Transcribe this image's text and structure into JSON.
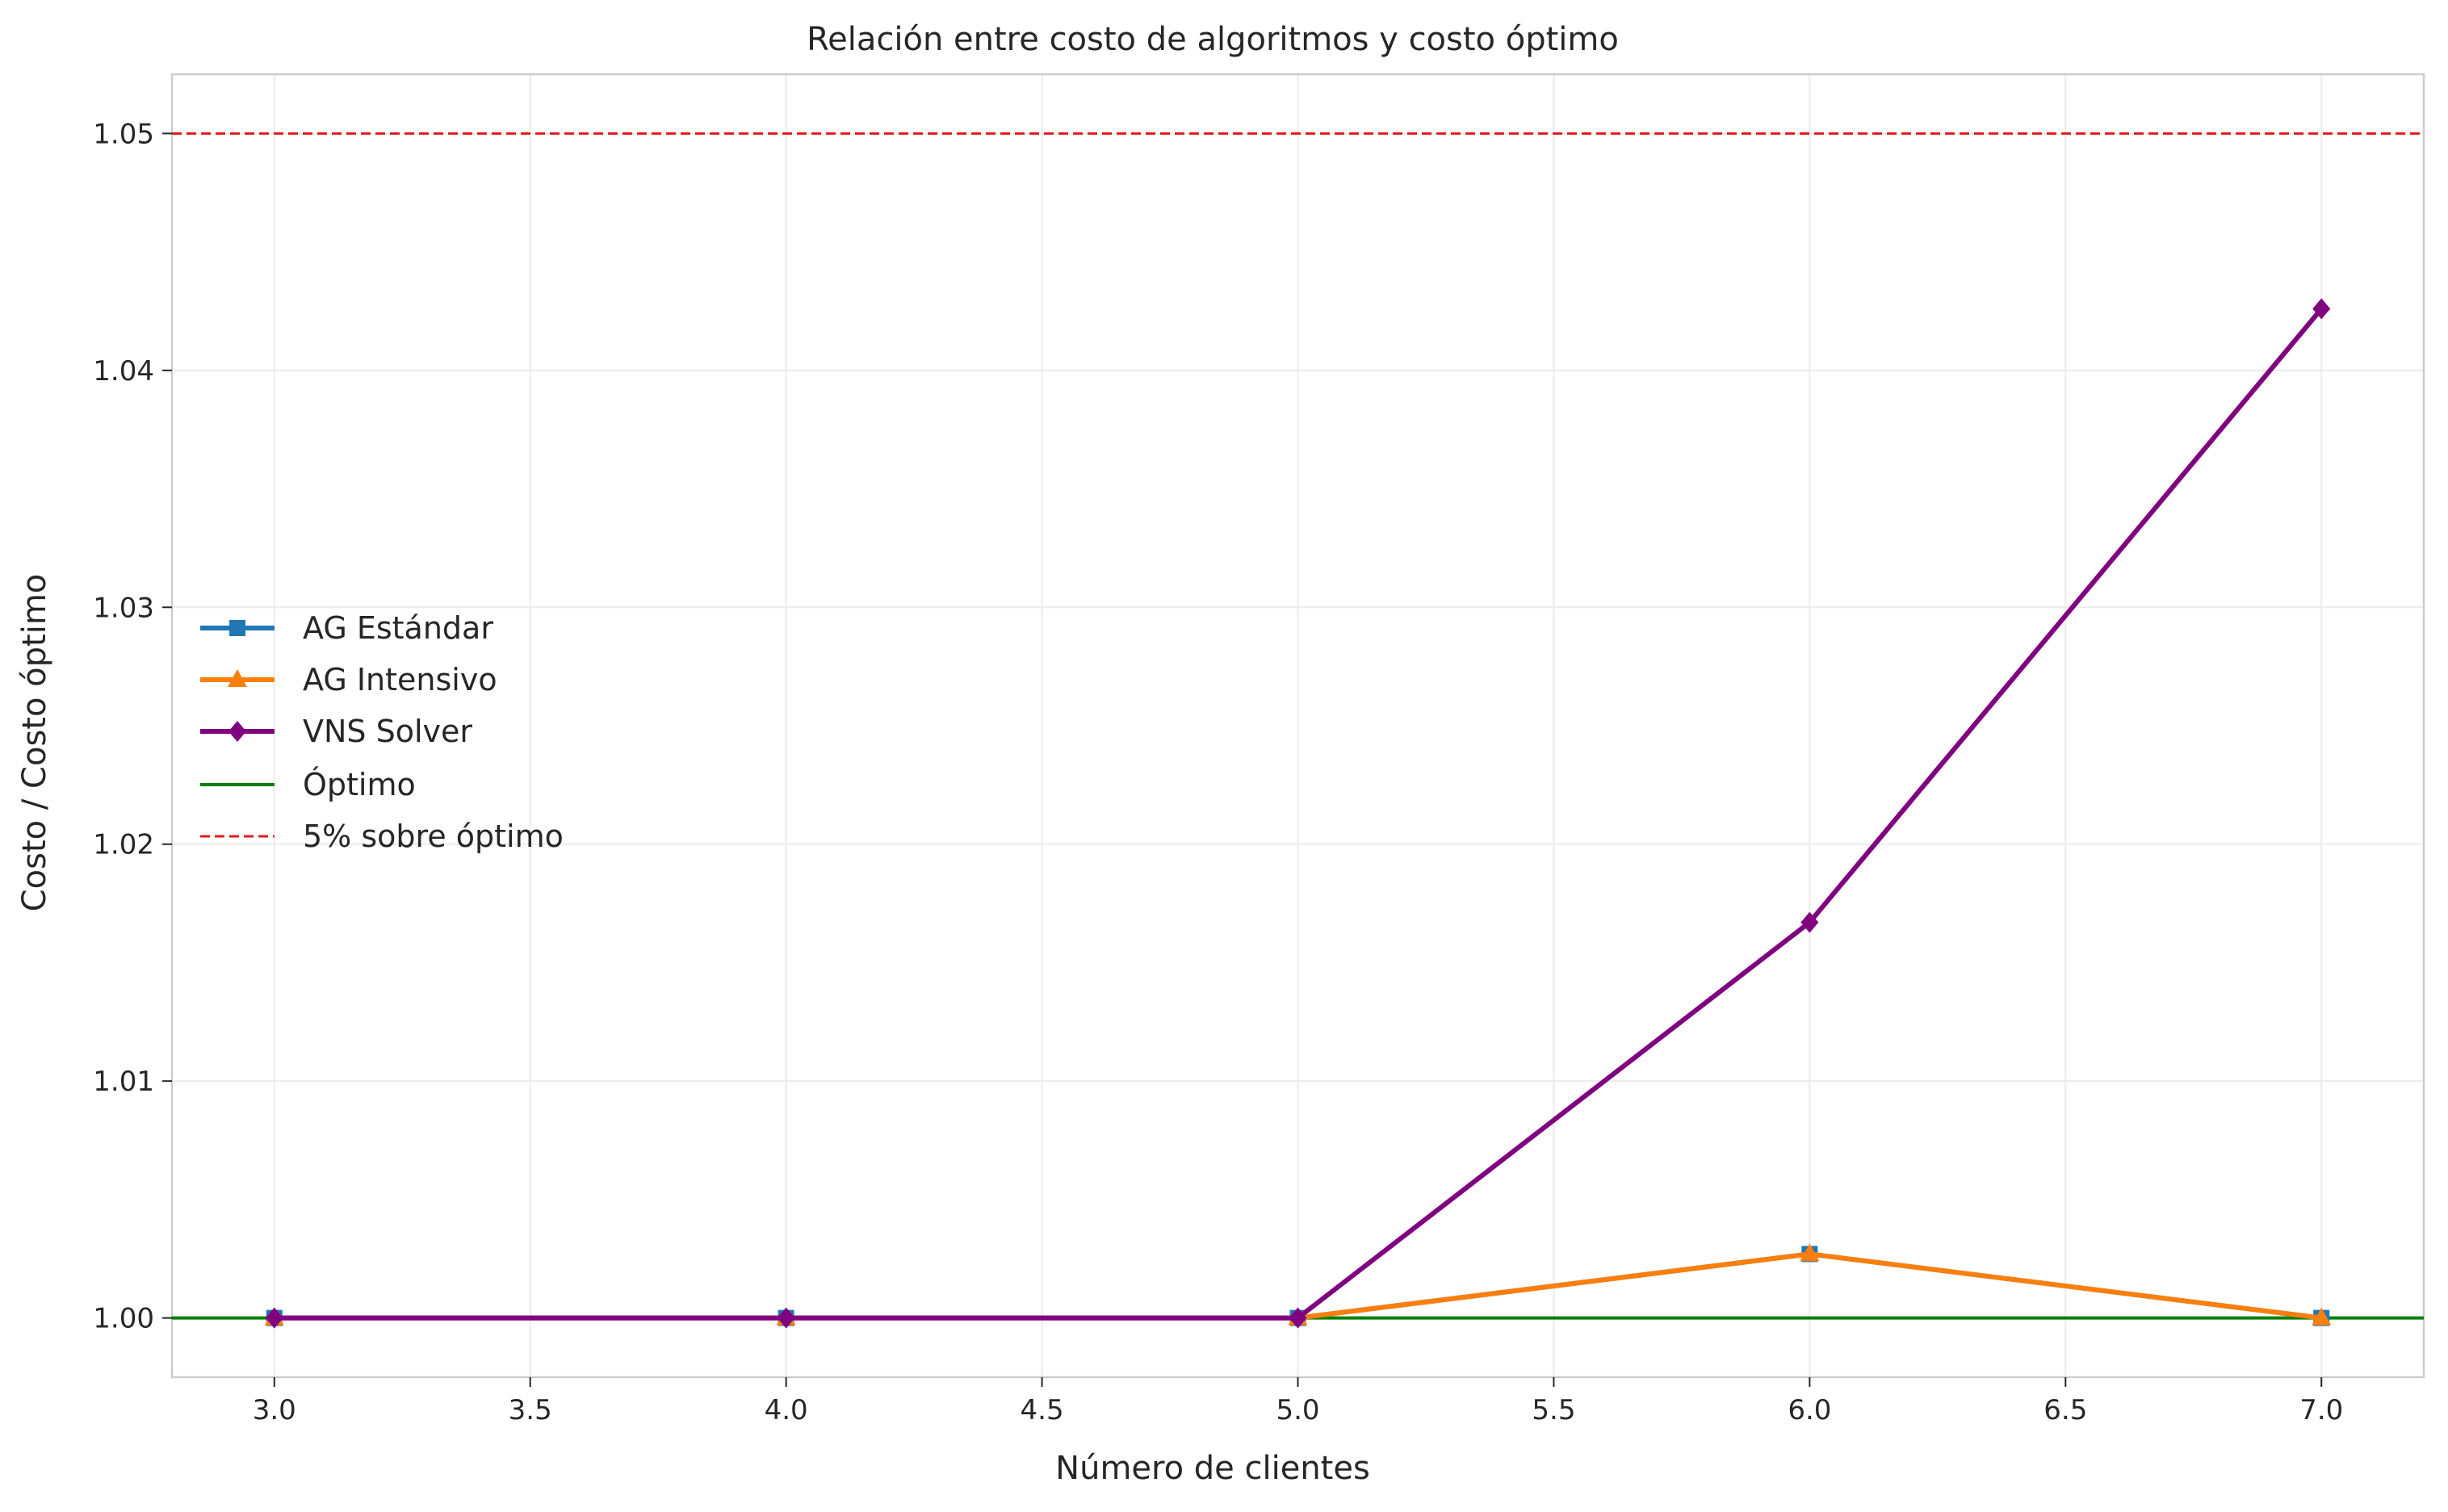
{
  "chart_data": {
    "type": "line",
    "title": "Relación entre costo de algoritmos y costo óptimo",
    "xlabel": "Número de clientes",
    "ylabel": "Costo / Costo óptimo",
    "xlim": [
      2.8,
      7.2
    ],
    "ylim": [
      0.9975,
      1.0525
    ],
    "xticks": [
      3.0,
      3.5,
      4.0,
      4.5,
      5.0,
      5.5,
      6.0,
      6.5,
      7.0
    ],
    "xtick_labels": [
      "3.0",
      "3.5",
      "4.0",
      "4.5",
      "5.0",
      "5.5",
      "6.0",
      "6.5",
      "7.0"
    ],
    "yticks": [
      1.0,
      1.01,
      1.02,
      1.03,
      1.04,
      1.05
    ],
    "ytick_labels": [
      "1.00",
      "1.01",
      "1.02",
      "1.03",
      "1.04",
      "1.05"
    ],
    "grid": true,
    "legend_position": "center-left",
    "x": [
      3,
      4,
      5,
      6,
      7
    ],
    "series": [
      {
        "name": "AG Estándar",
        "values": [
          1.0,
          1.0,
          1.0,
          1.0027,
          1.0
        ],
        "color": "#1f77b4",
        "marker": "square"
      },
      {
        "name": "AG Intensivo",
        "values": [
          1.0,
          1.0,
          1.0,
          1.0027,
          1.0
        ],
        "color": "#ff7f0e",
        "marker": "triangle"
      },
      {
        "name": "VNS Solver",
        "values": [
          1.0,
          1.0,
          1.0,
          1.0167,
          1.0426
        ],
        "color": "#800080",
        "marker": "diamond"
      }
    ],
    "reference_lines": [
      {
        "name": "Óptimo",
        "y": 1.0,
        "color": "#008000",
        "style": "solid"
      },
      {
        "name": "5% sobre óptimo",
        "y": 1.05,
        "color": "#e31a1c",
        "style": "dashed"
      }
    ]
  }
}
